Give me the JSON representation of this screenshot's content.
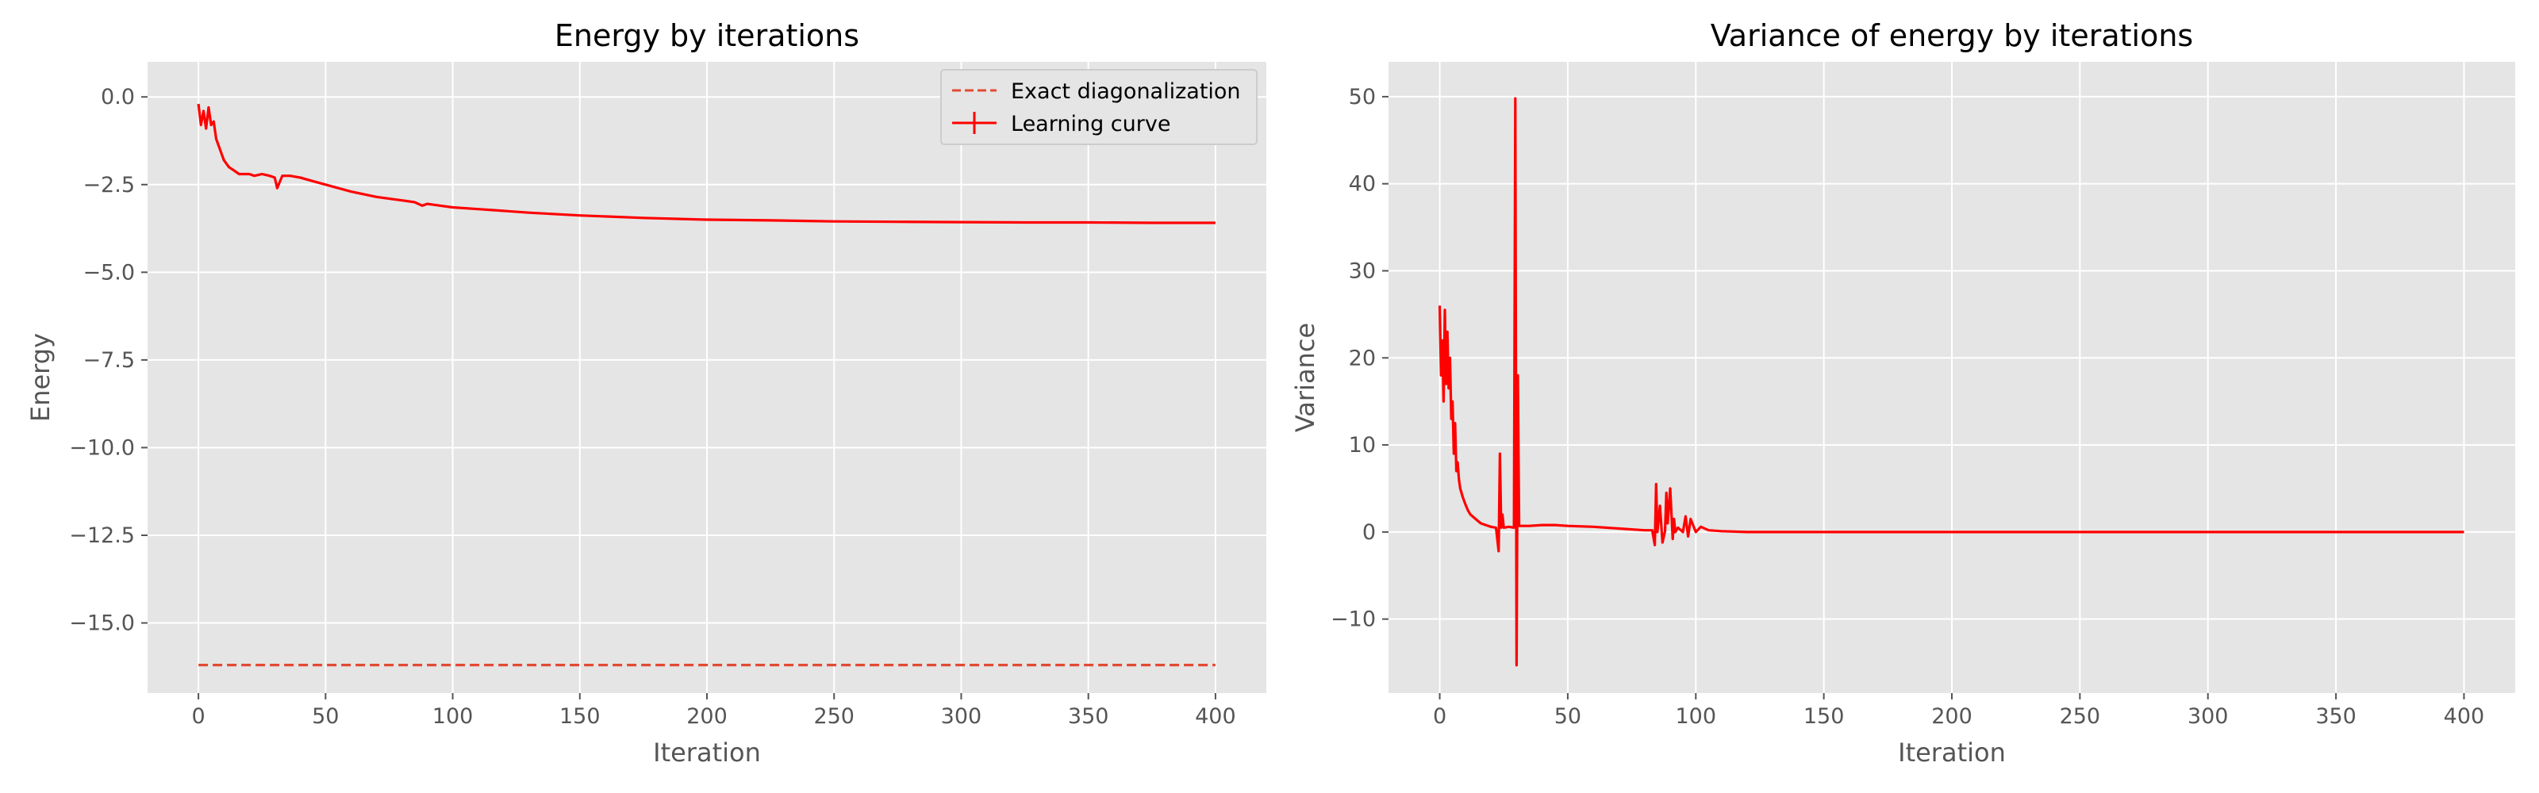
{
  "chart_data": [
    {
      "type": "line",
      "title": "Energy by iterations",
      "xlabel": "Iteration",
      "ylabel": "Energy",
      "xlim": [
        -20,
        420
      ],
      "ylim": [
        -17.0,
        1.0
      ],
      "xticks": [
        0,
        50,
        100,
        150,
        200,
        250,
        300,
        350,
        400
      ],
      "yticks": [
        0.0,
        -2.5,
        -5.0,
        -7.5,
        -10.0,
        -12.5,
        -15.0
      ],
      "ytick_labels": [
        "0.0",
        "−2.5",
        "−5.0",
        "−7.5",
        "−10.0",
        "−12.5",
        "−15.0"
      ],
      "grid": true,
      "legend": "upper right",
      "series": [
        {
          "name": "Exact diagonalization",
          "style": "dashed",
          "color": "#E24A33",
          "x": [
            0,
            400
          ],
          "y": [
            -16.2,
            -16.2
          ]
        },
        {
          "name": "Learning curve",
          "style": "solid-errorbar",
          "color": "#FF0000",
          "x": [
            0,
            1,
            2,
            3,
            4,
            5,
            6,
            7,
            8,
            9,
            10,
            12,
            14,
            16,
            18,
            20,
            22,
            25,
            28,
            30,
            31,
            33,
            36,
            40,
            45,
            50,
            55,
            60,
            70,
            80,
            85,
            88,
            90,
            95,
            100,
            110,
            120,
            130,
            150,
            175,
            200,
            225,
            250,
            275,
            300,
            325,
            350,
            375,
            400
          ],
          "y": [
            -0.2,
            -0.8,
            -0.4,
            -0.9,
            -0.3,
            -0.8,
            -0.7,
            -1.2,
            -1.4,
            -1.6,
            -1.8,
            -2.0,
            -2.1,
            -2.2,
            -2.2,
            -2.2,
            -2.25,
            -2.2,
            -2.25,
            -2.3,
            -2.6,
            -2.25,
            -2.25,
            -2.3,
            -2.4,
            -2.5,
            -2.6,
            -2.7,
            -2.85,
            -2.95,
            -3.0,
            -3.1,
            -3.05,
            -3.1,
            -3.15,
            -3.2,
            -3.25,
            -3.3,
            -3.38,
            -3.45,
            -3.5,
            -3.52,
            -3.55,
            -3.56,
            -3.57,
            -3.58,
            -3.58,
            -3.59,
            -3.59
          ]
        }
      ]
    },
    {
      "type": "line",
      "title": "Variance of energy by iterations",
      "xlabel": "Iteration",
      "ylabel": "Variance",
      "xlim": [
        -20,
        420
      ],
      "ylim": [
        -18.5,
        54.0
      ],
      "xticks": [
        0,
        50,
        100,
        150,
        200,
        250,
        300,
        350,
        400
      ],
      "yticks": [
        -10,
        0,
        10,
        20,
        30,
        40,
        50
      ],
      "ytick_labels": [
        "−10",
        "0",
        "10",
        "20",
        "30",
        "40",
        "50"
      ],
      "grid": true,
      "series": [
        {
          "color": "#FF0000",
          "x": [
            0,
            0.5,
            1,
            1.5,
            2,
            2.5,
            3,
            3.5,
            4,
            4.5,
            5,
            5.5,
            6,
            6.5,
            7,
            7.5,
            8,
            9,
            10,
            11,
            12,
            14,
            16,
            18,
            20,
            22,
            23,
            23.5,
            24,
            24.5,
            25,
            27,
            29,
            29.5,
            30,
            30.5,
            31,
            32,
            35,
            40,
            45,
            50,
            60,
            70,
            80,
            83,
            84,
            84.5,
            85,
            86,
            87,
            88,
            88.5,
            89,
            90,
            91,
            91.5,
            92,
            93,
            95,
            96,
            97,
            98,
            100,
            102,
            105,
            110,
            120,
            130,
            150,
            200,
            250,
            300,
            350,
            400
          ],
          "y": [
            26.0,
            18.0,
            22.0,
            15.0,
            25.5,
            17.0,
            23.0,
            16.5,
            20.0,
            13.0,
            15.0,
            9.0,
            12.5,
            7.0,
            8.0,
            6.0,
            5.0,
            4.0,
            3.2,
            2.5,
            2.0,
            1.5,
            1.0,
            0.8,
            0.6,
            0.5,
            -2.2,
            9.0,
            0.5,
            2.0,
            0.5,
            0.6,
            0.5,
            49.8,
            -15.3,
            18.0,
            0.7,
            0.7,
            0.7,
            0.8,
            0.8,
            0.7,
            0.6,
            0.4,
            0.2,
            0.2,
            -1.5,
            5.5,
            0.0,
            3.0,
            -1.2,
            0.1,
            4.5,
            1.0,
            5.0,
            -0.8,
            1.5,
            0.0,
            0.5,
            0.0,
            1.8,
            -0.5,
            1.5,
            0.0,
            0.6,
            0.2,
            0.1,
            0.0,
            0.0,
            0.0,
            0.0,
            0.0,
            0.0,
            0.0,
            0.0
          ]
        }
      ]
    }
  ]
}
